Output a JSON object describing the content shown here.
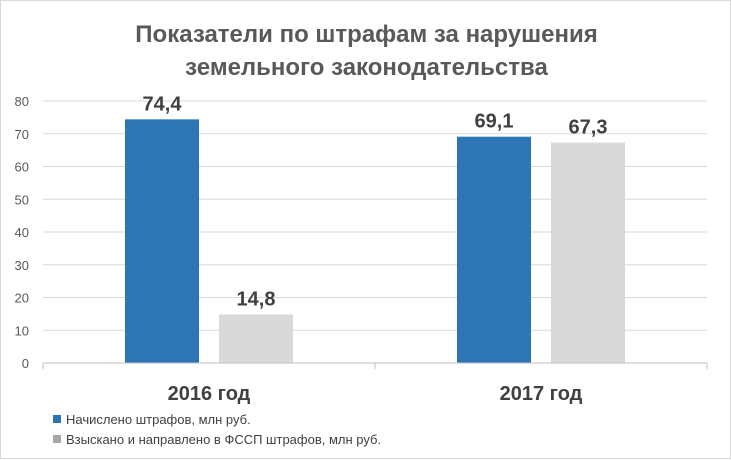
{
  "chart_data": {
    "type": "bar",
    "title": "Показатели по штрафам за нарушения земельного законодательства",
    "title_lines": [
      "Показатели по штрафам за нарушения",
      "земельного законодательства"
    ],
    "categories": [
      "2016 год",
      "2017 год"
    ],
    "series": [
      {
        "name": "Начислено штрафов, млн руб.",
        "values": [
          74.4,
          69.1
        ],
        "labels": [
          "74,4",
          "69,1"
        ],
        "color": "#2e75b6"
      },
      {
        "name": "Взыскано и направлено в ФССП штрафов, млн руб.",
        "values": [
          14.8,
          67.3
        ],
        "labels": [
          "14,8",
          "67,3"
        ],
        "color": "#d9d9d9"
      }
    ],
    "yticks": [
      0,
      10,
      20,
      30,
      40,
      50,
      60,
      70,
      80
    ],
    "ylim": [
      0,
      80
    ],
    "grid": true,
    "legend_position": "bottom-left",
    "xlabel": "",
    "ylabel": ""
  }
}
